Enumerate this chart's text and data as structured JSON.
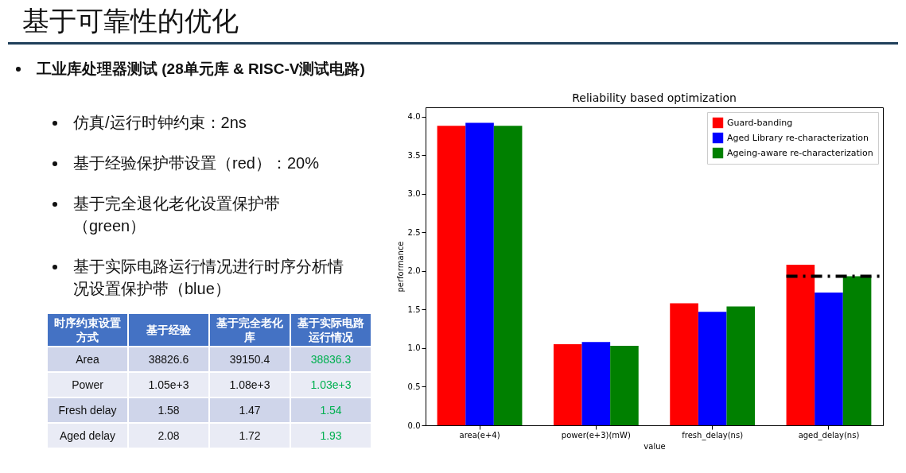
{
  "chart_data": [
    {
      "type": "other",
      "title": "基于可靠性的优化",
      "subtitle": "工业库处理器测试 (28单元库 & RISC-V测试电路)",
      "annotations": [
        "仿真/运行时钟约束：2ns",
        "基于经验保护带设置（red）：20%",
        "基于完全退化老化设置保护带（green）",
        "基于实际电路运行情况进行时序分析情况设置保护带（blue）"
      ]
    },
    {
      "type": "other",
      "ylabel": "时序约束设置方式",
      "categories": [
        "基于经验",
        "基于完全老化库",
        "基于实际电路运行情况"
      ],
      "y_categories": [
        "Area",
        "Power",
        "Fresh delay",
        "Aged delay"
      ],
      "cell_labels": [
        [
          "38826.6",
          "39150.4",
          "38836.3"
        ],
        [
          "1.05e+3",
          "1.08e+3",
          "1.03e+3"
        ],
        [
          "1.58",
          "1.47",
          "1.54"
        ],
        [
          "2.08",
          "1.72",
          "1.93"
        ]
      ]
    },
    {
      "type": "bar",
      "title": "Reliability based optimization",
      "xlabel": "value",
      "ylabel": "performance",
      "categories": [
        "area(e+4)",
        "power(e+3)(mW)",
        "fresh_delay(ns)",
        "aged_delay(ns)"
      ],
      "series": [
        {
          "name": "Guard-banding",
          "color": "#ff0000",
          "values": [
            3.88,
            1.05,
            1.58,
            2.08
          ]
        },
        {
          "name": "Aged Library re-characterization",
          "color": "#0000ff",
          "values": [
            3.92,
            1.08,
            1.47,
            1.72
          ]
        },
        {
          "name": "Ageing-aware re-characterization",
          "color": "#008000",
          "values": [
            3.88,
            1.03,
            1.54,
            1.93
          ]
        }
      ],
      "ylim": [
        0,
        4.12
      ],
      "yticks": [
        {
          "value": 0,
          "label": "0.0"
        },
        {
          "value": 0.5,
          "label": "0.5"
        },
        {
          "value": 1,
          "label": "1.0"
        },
        {
          "value": 1.5,
          "label": "1.5"
        },
        {
          "value": 2,
          "label": "2.0"
        },
        {
          "value": 2.5,
          "label": "2.5"
        },
        {
          "value": 3,
          "label": "3.0"
        },
        {
          "value": 3.5,
          "label": "3.5"
        },
        {
          "value": 4,
          "label": "4.0"
        }
      ],
      "grid": false,
      "legend": "top right",
      "ref_lines": [
        {
          "axis": "y",
          "value": 1.93,
          "color": "#000000",
          "line_style": "dashed"
        }
      ]
    }
  ]
}
